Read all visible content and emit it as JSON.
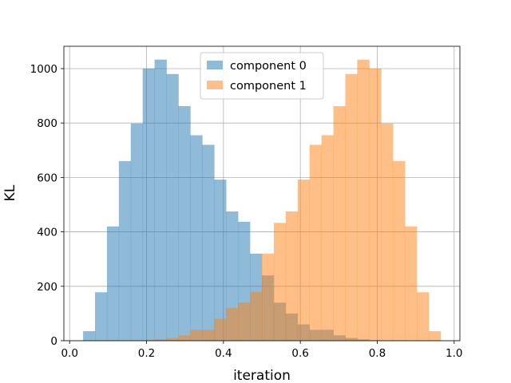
{
  "chart_data": {
    "type": "bar",
    "xlabel": "iteration",
    "ylabel": "KL",
    "xlim": [
      -0.015,
      1.015
    ],
    "ylim": [
      0,
      1082
    ],
    "xticks": [
      0.0,
      0.2,
      0.4,
      0.6,
      0.8,
      1.0
    ],
    "xtick_labels": [
      "0.0",
      "0.2",
      "0.4",
      "0.6",
      "0.8",
      "1.0"
    ],
    "yticks": [
      0,
      200,
      400,
      600,
      800,
      1000
    ],
    "ytick_labels": [
      "0",
      "200",
      "400",
      "600",
      "800",
      "1000"
    ],
    "grid": true,
    "legend_position": "top-center",
    "series": [
      {
        "name": "component 0",
        "color": "#1f77b4",
        "alpha": 0.5,
        "bins": [
          {
            "x0": 0.035,
            "x1": 0.066,
            "value": 35
          },
          {
            "x0": 0.066,
            "x1": 0.097,
            "value": 178
          },
          {
            "x0": 0.097,
            "x1": 0.128,
            "value": 420
          },
          {
            "x0": 0.128,
            "x1": 0.159,
            "value": 660
          },
          {
            "x0": 0.159,
            "x1": 0.19,
            "value": 798
          },
          {
            "x0": 0.19,
            "x1": 0.221,
            "value": 1000
          },
          {
            "x0": 0.221,
            "x1": 0.252,
            "value": 1033
          },
          {
            "x0": 0.252,
            "x1": 0.283,
            "value": 980
          },
          {
            "x0": 0.283,
            "x1": 0.314,
            "value": 862
          },
          {
            "x0": 0.314,
            "x1": 0.345,
            "value": 755
          },
          {
            "x0": 0.345,
            "x1": 0.376,
            "value": 720
          },
          {
            "x0": 0.376,
            "x1": 0.407,
            "value": 592
          },
          {
            "x0": 0.407,
            "x1": 0.438,
            "value": 475
          },
          {
            "x0": 0.438,
            "x1": 0.469,
            "value": 437
          },
          {
            "x0": 0.469,
            "x1": 0.5,
            "value": 320
          },
          {
            "x0": 0.5,
            "x1": 0.531,
            "value": 240
          },
          {
            "x0": 0.531,
            "x1": 0.562,
            "value": 140
          },
          {
            "x0": 0.562,
            "x1": 0.593,
            "value": 100
          },
          {
            "x0": 0.593,
            "x1": 0.624,
            "value": 60
          },
          {
            "x0": 0.624,
            "x1": 0.655,
            "value": 40
          },
          {
            "x0": 0.655,
            "x1": 0.686,
            "value": 40
          },
          {
            "x0": 0.686,
            "x1": 0.717,
            "value": 20
          },
          {
            "x0": 0.717,
            "x1": 0.748,
            "value": 10
          },
          {
            "x0": 0.748,
            "x1": 0.779,
            "value": 5
          },
          {
            "x0": 0.779,
            "x1": 0.81,
            "value": 2
          }
        ]
      },
      {
        "name": "component 1",
        "color": "#ff7f0e",
        "alpha": 0.5,
        "bins": [
          {
            "x0": 0.19,
            "x1": 0.221,
            "value": 2
          },
          {
            "x0": 0.221,
            "x1": 0.252,
            "value": 5
          },
          {
            "x0": 0.252,
            "x1": 0.283,
            "value": 10
          },
          {
            "x0": 0.283,
            "x1": 0.314,
            "value": 20
          },
          {
            "x0": 0.314,
            "x1": 0.345,
            "value": 40
          },
          {
            "x0": 0.345,
            "x1": 0.376,
            "value": 40
          },
          {
            "x0": 0.376,
            "x1": 0.407,
            "value": 80
          },
          {
            "x0": 0.407,
            "x1": 0.438,
            "value": 120
          },
          {
            "x0": 0.438,
            "x1": 0.469,
            "value": 140
          },
          {
            "x0": 0.469,
            "x1": 0.5,
            "value": 180
          },
          {
            "x0": 0.5,
            "x1": 0.531,
            "value": 320
          },
          {
            "x0": 0.531,
            "x1": 0.562,
            "value": 433
          },
          {
            "x0": 0.562,
            "x1": 0.593,
            "value": 475
          },
          {
            "x0": 0.593,
            "x1": 0.624,
            "value": 592
          },
          {
            "x0": 0.624,
            "x1": 0.655,
            "value": 720
          },
          {
            "x0": 0.655,
            "x1": 0.686,
            "value": 755
          },
          {
            "x0": 0.686,
            "x1": 0.717,
            "value": 862
          },
          {
            "x0": 0.717,
            "x1": 0.748,
            "value": 980
          },
          {
            "x0": 0.748,
            "x1": 0.779,
            "value": 1033
          },
          {
            "x0": 0.779,
            "x1": 0.81,
            "value": 1000
          },
          {
            "x0": 0.81,
            "x1": 0.841,
            "value": 798
          },
          {
            "x0": 0.841,
            "x1": 0.872,
            "value": 660
          },
          {
            "x0": 0.872,
            "x1": 0.903,
            "value": 420
          },
          {
            "x0": 0.903,
            "x1": 0.934,
            "value": 178
          },
          {
            "x0": 0.934,
            "x1": 0.965,
            "value": 35
          }
        ]
      }
    ]
  }
}
